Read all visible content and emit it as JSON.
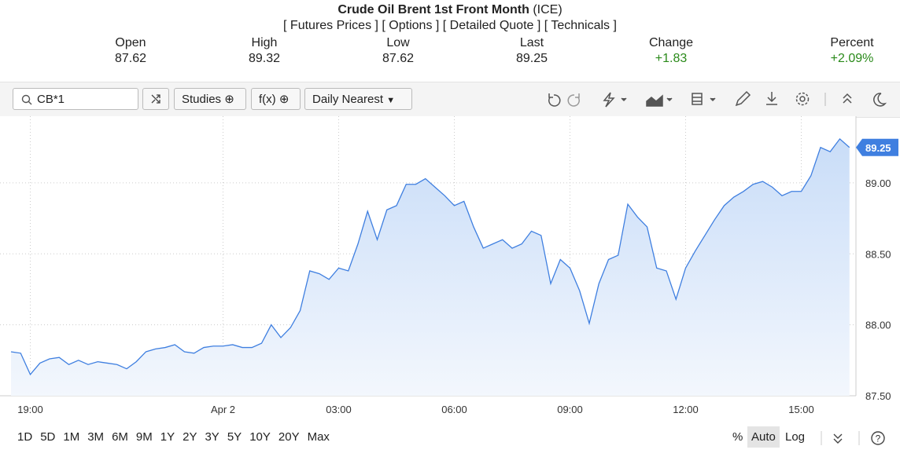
{
  "header": {
    "title": "Crude Oil Brent 1st Front Month",
    "exchange": "(ICE)",
    "links": [
      "[ Futures Prices ]",
      "[ Options ]",
      "[ Detailed Quote ]",
      "[ Technicals ]"
    ]
  },
  "quote": [
    {
      "label": "Open",
      "value": "87.62"
    },
    {
      "label": "High",
      "value": "89.32"
    },
    {
      "label": "Low",
      "value": "87.62"
    },
    {
      "label": "Last",
      "value": "89.25"
    },
    {
      "label": "Change",
      "value": "+1.83"
    },
    {
      "label": "Percent",
      "value": "+2.09%"
    }
  ],
  "toolbar": {
    "symbol": "CB*1",
    "studies": "Studies",
    "fx": "f(x)",
    "interval": "Daily Nearest"
  },
  "periods": [
    "1D",
    "5D",
    "1M",
    "3M",
    "6M",
    "9M",
    "1Y",
    "2Y",
    "3Y",
    "5Y",
    "10Y",
    "20Y",
    "Max"
  ],
  "scale_options": [
    "%",
    "Auto",
    "Log"
  ],
  "chart_data": {
    "type": "area",
    "color": "#3f7fe0",
    "grid": true,
    "categories": [
      null,
      null,
      "19:00",
      null,
      null,
      null,
      null,
      null,
      null,
      null,
      null,
      null,
      null,
      null,
      null,
      null,
      null,
      null,
      null,
      null,
      null,
      null,
      "Apr 2",
      null,
      null,
      null,
      null,
      null,
      null,
      null,
      null,
      null,
      null,
      null,
      "03:00",
      null,
      null,
      null,
      null,
      null,
      null,
      null,
      null,
      null,
      null,
      null,
      "06:00",
      null,
      null,
      null,
      null,
      null,
      null,
      null,
      null,
      null,
      null,
      null,
      "09:00",
      null,
      null,
      null,
      null,
      null,
      null,
      null,
      null,
      null,
      null,
      null,
      "12:00",
      null,
      null,
      null,
      null,
      null,
      null,
      null,
      null,
      null,
      null,
      null,
      "15:00",
      null,
      null,
      null,
      null,
      null
    ],
    "values": [
      87.81,
      87.8,
      87.65,
      87.73,
      87.76,
      87.77,
      87.72,
      87.75,
      87.72,
      87.74,
      87.73,
      87.72,
      87.69,
      87.74,
      87.81,
      87.83,
      87.84,
      87.86,
      87.81,
      87.8,
      87.84,
      87.85,
      87.85,
      87.86,
      87.84,
      87.84,
      87.87,
      88.0,
      87.91,
      87.98,
      88.1,
      88.38,
      88.36,
      88.32,
      88.4,
      88.38,
      88.57,
      88.8,
      88.6,
      88.81,
      88.84,
      88.99,
      88.99,
      89.03,
      88.97,
      88.91,
      88.84,
      88.87,
      88.69,
      88.54,
      88.57,
      88.6,
      88.54,
      88.57,
      88.66,
      88.63,
      88.29,
      88.46,
      88.4,
      88.24,
      88.01,
      88.29,
      88.46,
      88.49,
      88.85,
      88.76,
      88.69,
      88.4,
      88.38,
      88.18,
      88.4,
      88.52,
      88.63,
      88.74,
      88.84,
      88.9,
      88.94,
      88.99,
      89.01,
      88.97,
      88.91,
      88.94,
      88.94,
      89.05,
      89.25,
      89.22,
      89.31,
      89.25
    ],
    "value_labels": [
      null,
      null,
      null,
      null,
      null,
      null,
      null,
      null,
      null,
      null,
      null,
      null,
      null,
      null,
      null,
      null,
      null,
      null,
      null,
      null,
      null,
      null,
      null,
      null,
      null,
      null,
      null,
      null,
      null,
      null,
      null,
      null,
      null,
      null,
      null,
      null,
      null,
      null,
      null,
      null,
      null,
      null,
      null,
      null,
      null,
      null,
      null,
      null,
      null,
      null,
      null,
      null,
      null,
      null,
      null,
      null,
      null,
      null,
      null,
      null,
      null,
      null,
      null,
      null,
      null,
      null,
      null,
      null,
      null,
      null,
      null,
      null,
      null,
      null,
      null,
      null,
      null,
      null,
      null,
      null,
      null,
      null,
      null,
      null,
      null,
      null,
      null,
      "89.25"
    ],
    "ylim": [
      87.5,
      89.47
    ],
    "yticks": [
      {
        "value": 87.5,
        "label": "87.50"
      },
      {
        "value": 88,
        "label": "88.00"
      },
      {
        "value": 88.5,
        "label": "88.50"
      },
      {
        "value": 89,
        "label": "89.00"
      }
    ]
  }
}
